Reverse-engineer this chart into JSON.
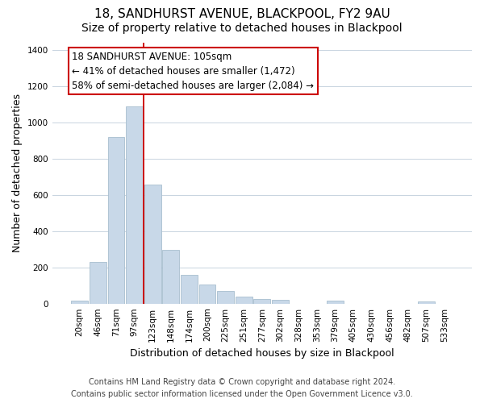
{
  "title": "18, SANDHURST AVENUE, BLACKPOOL, FY2 9AU",
  "subtitle": "Size of property relative to detached houses in Blackpool",
  "xlabel": "Distribution of detached houses by size in Blackpool",
  "ylabel": "Number of detached properties",
  "bar_labels": [
    "20sqm",
    "46sqm",
    "71sqm",
    "97sqm",
    "123sqm",
    "148sqm",
    "174sqm",
    "200sqm",
    "225sqm",
    "251sqm",
    "277sqm",
    "302sqm",
    "328sqm",
    "353sqm",
    "379sqm",
    "405sqm",
    "430sqm",
    "456sqm",
    "482sqm",
    "507sqm",
    "533sqm"
  ],
  "bar_heights": [
    15,
    230,
    920,
    1085,
    655,
    295,
    160,
    105,
    70,
    40,
    25,
    20,
    0,
    0,
    18,
    0,
    0,
    0,
    0,
    12,
    0
  ],
  "bar_color": "#c8d8e8",
  "bar_edge_color": "#a8bece",
  "vline_x": 3.5,
  "vline_color": "#cc0000",
  "annotation_title": "18 SANDHURST AVENUE: 105sqm",
  "annotation_line1": "← 41% of detached houses are smaller (1,472)",
  "annotation_line2": "58% of semi-detached houses are larger (2,084) →",
  "annotation_box_color": "#ffffff",
  "annotation_box_edge": "#cc0000",
  "ylim": [
    0,
    1440
  ],
  "yticks": [
    0,
    200,
    400,
    600,
    800,
    1000,
    1200,
    1400
  ],
  "footer_line1": "Contains HM Land Registry data © Crown copyright and database right 2024.",
  "footer_line2": "Contains public sector information licensed under the Open Government Licence v3.0.",
  "bg_color": "#ffffff",
  "grid_color": "#c8d4e0",
  "title_fontsize": 11,
  "subtitle_fontsize": 10,
  "axis_label_fontsize": 9,
  "tick_fontsize": 7.5,
  "annotation_fontsize": 8.5,
  "footer_fontsize": 7
}
